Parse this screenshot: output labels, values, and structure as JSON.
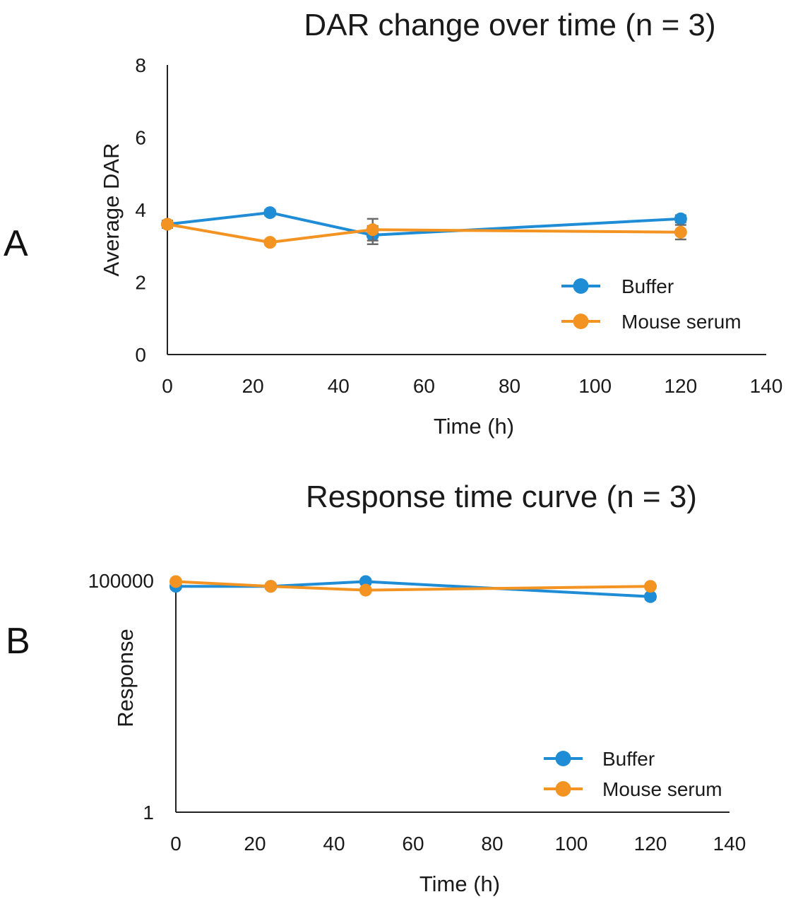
{
  "colors": {
    "buffer": "#1f8dd6",
    "serum": "#f39322",
    "error": "#6b6b6b"
  },
  "chart_data": [
    {
      "type": "line",
      "panel_label": "A",
      "title": "DAR change over time (n = 3)",
      "xlabel": "Time (h)",
      "ylabel": "Average DAR",
      "xlim": [
        0,
        140
      ],
      "ylim": [
        0,
        8
      ],
      "x_ticks": [
        "0",
        "20",
        "40",
        "60",
        "80",
        "100",
        "120",
        "140"
      ],
      "y_ticks": [
        "0",
        "2",
        "4",
        "6",
        "8"
      ],
      "x_scale": "linear",
      "y_scale": "linear",
      "x": [
        0,
        24,
        48,
        120
      ],
      "series": [
        {
          "name": "Buffer",
          "values": [
            3.6,
            3.92,
            3.3,
            3.75
          ],
          "errors": [
            0.08,
            0.08,
            0.25,
            0.1
          ]
        },
        {
          "name": "Mouse serum",
          "values": [
            3.6,
            3.1,
            3.45,
            3.38
          ],
          "errors": [
            0.1,
            0.07,
            0.3,
            0.2
          ]
        }
      ],
      "legend": "bottom-right"
    },
    {
      "type": "line",
      "panel_label": "B",
      "title": "Response time curve (n = 3)",
      "xlabel": "Time (h)",
      "ylabel": "Response",
      "xlim": [
        0,
        140
      ],
      "ylim": [
        1,
        100000
      ],
      "x_ticks": [
        "0",
        "20",
        "40",
        "60",
        "80",
        "100",
        "120",
        "140"
      ],
      "y_ticks": [
        "1",
        "100000"
      ],
      "x_scale": "linear",
      "y_scale": "log",
      "x": [
        0,
        24,
        48,
        120
      ],
      "series": [
        {
          "name": "Buffer",
          "values": [
            75000,
            75000,
            95000,
            45000
          ],
          "errors": [
            9000,
            7000,
            10000,
            6000
          ]
        },
        {
          "name": "Mouse serum",
          "values": [
            95000,
            75000,
            62000,
            75000
          ],
          "errors": [
            8000,
            6000,
            7000,
            8000
          ]
        }
      ],
      "legend": "bottom-right"
    }
  ]
}
